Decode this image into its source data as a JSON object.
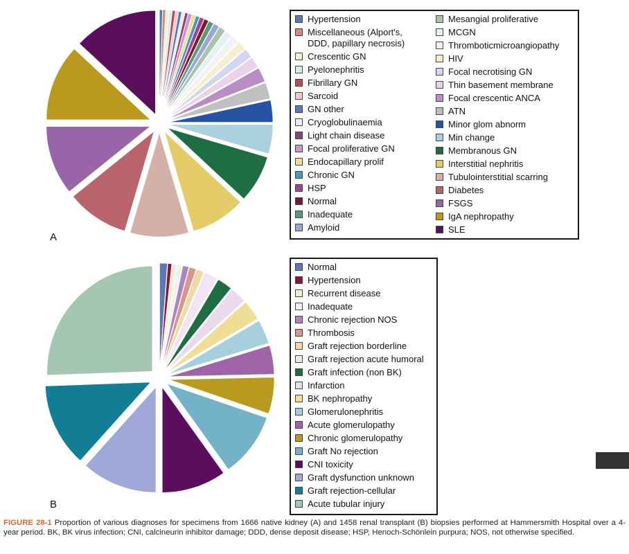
{
  "chart_data": [
    {
      "type": "pie",
      "panel_label": "A",
      "exploded": true,
      "slices": [
        {
          "label": "Hypertension",
          "value": 0.4,
          "color": "#5b79b4"
        },
        {
          "label": "Miscellaneous (Alport's,\nDDD, papillary necrosis)",
          "value": 0.4,
          "color": "#cf8c86"
        },
        {
          "label": "Crescentic GN",
          "value": 0.4,
          "color": "#f6efcf"
        },
        {
          "label": "Pyelonephritis",
          "value": 0.4,
          "color": "#d5ecf1"
        },
        {
          "label": "Fibrillary GN",
          "value": 0.4,
          "color": "#b44e56"
        },
        {
          "label": "Sarcoid",
          "value": 0.4,
          "color": "#f3c9c2"
        },
        {
          "label": "GN other",
          "value": 0.4,
          "color": "#5a79bd"
        },
        {
          "label": "Cryoglobulinaemia",
          "value": 0.4,
          "color": "#eeeaf4"
        },
        {
          "label": "Light chain disease",
          "value": 0.4,
          "color": "#8a447c"
        },
        {
          "label": "Focal proliferative GN",
          "value": 0.5,
          "color": "#c998c8"
        },
        {
          "label": "Endocapillary prolif",
          "value": 0.5,
          "color": "#f0dd96"
        },
        {
          "label": "Chronic GN",
          "value": 0.5,
          "color": "#4a9ab3"
        },
        {
          "label": "HSP",
          "value": 0.6,
          "color": "#9d4795"
        },
        {
          "label": "Normal",
          "value": 0.6,
          "color": "#7a1b2c"
        },
        {
          "label": "Inadequate",
          "value": 0.7,
          "color": "#5b9a76"
        },
        {
          "label": "Amyloid",
          "value": 0.8,
          "color": "#9aa7d6"
        },
        {
          "label": "Mesangial proliferative",
          "value": 0.9,
          "color": "#a9c3a9"
        },
        {
          "label": "MCGN",
          "value": 1.0,
          "color": "#e3f0f4"
        },
        {
          "label": "Thromboticmicroangiopathy",
          "value": 1.1,
          "color": "#f2f2f2"
        },
        {
          "label": "HIV",
          "value": 1.2,
          "color": "#f7eed0"
        },
        {
          "label": "Focal necrotising GN",
          "value": 1.3,
          "color": "#d2d6ef"
        },
        {
          "label": "Thin basement membrane",
          "value": 1.5,
          "color": "#ead3ea"
        },
        {
          "label": "Focal crescentic ANCA",
          "value": 2.0,
          "color": "#b98ec4"
        },
        {
          "label": "ATN",
          "value": 2.2,
          "color": "#c0c0c0"
        },
        {
          "label": "Minor glom abnorm",
          "value": 3.0,
          "color": "#2653a4"
        },
        {
          "label": "Min change",
          "value": 4.0,
          "color": "#a9d2de"
        },
        {
          "label": "Membranous GN",
          "value": 6.5,
          "color": "#1f6e43"
        },
        {
          "label": "Interstitial nephritis",
          "value": 7.5,
          "color": "#e6cc68"
        },
        {
          "label": "Tubulointerstitial scarring",
          "value": 8.0,
          "color": "#d3b1a7"
        },
        {
          "label": "Diabetes",
          "value": 8.5,
          "color": "#b9636a"
        },
        {
          "label": "FSGS",
          "value": 9.5,
          "color": "#9866a8"
        },
        {
          "label": "IgA nephropathy",
          "value": 10.5,
          "color": "#b99a1e"
        },
        {
          "label": "SLE",
          "value": 11.5,
          "color": "#5b0e5b"
        }
      ]
    },
    {
      "type": "pie",
      "panel_label": "B",
      "exploded": true,
      "slices": [
        {
          "label": "Normal",
          "value": 1.0,
          "color": "#5b79b4"
        },
        {
          "label": "Hypertension",
          "value": 0.5,
          "color": "#8a1730"
        },
        {
          "label": "Recurrent disease",
          "value": 0.6,
          "color": "#f4ecd2"
        },
        {
          "label": "Inadequate",
          "value": 0.7,
          "color": "#eef3f0"
        },
        {
          "label": "Chronic rejection NOS",
          "value": 0.8,
          "color": "#a987bb"
        },
        {
          "label": "Thrombosis",
          "value": 0.9,
          "color": "#d9958d"
        },
        {
          "label": "Graft rejection borderline",
          "value": 1.0,
          "color": "#efd9a6"
        },
        {
          "label": "Graft rejection acute humoral",
          "value": 1.8,
          "color": "#efe6f2"
        },
        {
          "label": "Graft infection (non BK)",
          "value": 2.0,
          "color": "#1f6e43"
        },
        {
          "label": "Infarction",
          "value": 2.2,
          "color": "#ebd9ee"
        },
        {
          "label": "BK nephropathy",
          "value": 2.7,
          "color": "#f0dd96"
        },
        {
          "label": "Glomerulonephritis",
          "value": 3.2,
          "color": "#a6d0de"
        },
        {
          "label": "Acute glomerulopathy",
          "value": 3.8,
          "color": "#9f64a8"
        },
        {
          "label": "Chronic glomerulopathy",
          "value": 4.8,
          "color": "#b99a1e"
        },
        {
          "label": "Graft No rejection",
          "value": 8.5,
          "color": "#74b2c7"
        },
        {
          "label": "CNI toxicity",
          "value": 8.5,
          "color": "#5b0e5b"
        },
        {
          "label": "Graft dysfunction unknown",
          "value": 10.0,
          "color": "#9ea8d9"
        },
        {
          "label": "Graft rejection-cellular",
          "value": 11.0,
          "color": "#117e96"
        },
        {
          "label": "Acute tubular injury",
          "value": 22.0,
          "color": "#a5c7b2"
        }
      ]
    }
  ],
  "legend_a_col1": [
    {
      "label": "Hypertension",
      "color": "#5b79b4"
    },
    {
      "label": "Miscellaneous (Alport's,\nDDD, papillary necrosis)",
      "color": "#cf8c86"
    },
    {
      "label": "Crescentic GN",
      "color": "#f6efcf"
    },
    {
      "label": "Pyelonephritis",
      "color": "#d5ecf1"
    },
    {
      "label": "Fibrillary GN",
      "color": "#b44e56"
    },
    {
      "label": "Sarcoid",
      "color": "#f3c9c2"
    },
    {
      "label": "GN other",
      "color": "#5a79bd"
    },
    {
      "label": "Cryoglobulinaemia",
      "color": "#eeeaf4"
    },
    {
      "label": "Light chain disease",
      "color": "#8a447c"
    },
    {
      "label": "Focal proliferative GN",
      "color": "#c998c8"
    },
    {
      "label": "Endocapillary prolif",
      "color": "#f0dd96"
    },
    {
      "label": "Chronic GN",
      "color": "#4a9ab3"
    },
    {
      "label": "HSP",
      "color": "#9d4795"
    },
    {
      "label": "Normal",
      "color": "#7a1b2c"
    },
    {
      "label": "Inadequate",
      "color": "#5b9a76"
    },
    {
      "label": "Amyloid",
      "color": "#9aa7d6"
    }
  ],
  "legend_a_col2": [
    {
      "label": "Mesangial proliferative",
      "color": "#a9c3a9"
    },
    {
      "label": "MCGN",
      "color": "#e3f0f4"
    },
    {
      "label": "Thromboticmicroangiopathy",
      "color": "#f2f2f2"
    },
    {
      "label": "HIV",
      "color": "#f7eed0"
    },
    {
      "label": "Focal necrotising GN",
      "color": "#d2d6ef"
    },
    {
      "label": "Thin basement membrane",
      "color": "#ead3ea"
    },
    {
      "label": "Focal crescentic ANCA",
      "color": "#b98ec4"
    },
    {
      "label": "ATN",
      "color": "#c0c0c0"
    },
    {
      "label": "Minor glom abnorm",
      "color": "#2653a4"
    },
    {
      "label": "Min change",
      "color": "#a9d2de"
    },
    {
      "label": "Membranous GN",
      "color": "#1f6e43"
    },
    {
      "label": "Interstitial nephritis",
      "color": "#e6cc68"
    },
    {
      "label": "Tubulointerstitial scarring",
      "color": "#d3b1a7"
    },
    {
      "label": "Diabetes",
      "color": "#b9636a"
    },
    {
      "label": "FSGS",
      "color": "#9866a8"
    },
    {
      "label": "IgA nephropathy",
      "color": "#b99a1e"
    },
    {
      "label": "SLE",
      "color": "#5b0e5b"
    }
  ],
  "legend_b": [
    {
      "label": "Normal",
      "color": "#5b79b4"
    },
    {
      "label": "Hypertension",
      "color": "#8a1730"
    },
    {
      "label": "Recurrent disease",
      "color": "#f4ecd2"
    },
    {
      "label": "Inadequate",
      "color": "#eef3f0"
    },
    {
      "label": "Chronic rejection NOS",
      "color": "#a987bb"
    },
    {
      "label": "Thrombosis",
      "color": "#d9958d"
    },
    {
      "label": "Graft rejection borderline",
      "color": "#efd9a6"
    },
    {
      "label": "Graft rejection acute humoral",
      "color": "#efe6f2"
    },
    {
      "label": "Graft infection (non BK)",
      "color": "#1f6e43"
    },
    {
      "label": "Infarction",
      "color": "#ebd9ee"
    },
    {
      "label": "BK nephropathy",
      "color": "#f0dd96"
    },
    {
      "label": "Glomerulonephritis",
      "color": "#a6d0de"
    },
    {
      "label": "Acute glomerulopathy",
      "color": "#9f64a8"
    },
    {
      "label": "Chronic glomerulopathy",
      "color": "#b99a1e"
    },
    {
      "label": "Graft No rejection",
      "color": "#74b2c7"
    },
    {
      "label": "CNI toxicity",
      "color": "#5b0e5b"
    },
    {
      "label": "Graft dysfunction unknown",
      "color": "#9ea8d9"
    },
    {
      "label": "Graft rejection-cellular",
      "color": "#117e96"
    },
    {
      "label": "Acute tubular injury",
      "color": "#a5c7b2"
    }
  ],
  "panel_a_label": "A",
  "panel_b_label": "B",
  "caption": {
    "figure_label": "FIGURE 28-1",
    "text": "Proportion of various diagnoses for specimens from 1666 native kidney (A) and 1458 renal transplant (B) biopsies performed at Hammersmith Hospital over a 4-year period. BK, BK virus infection; CNI, calcineurin inhibitor damage; DDD, dense deposit disease; HSP, Henoch-Schönlein purpura; NOS, not otherwise specified."
  }
}
